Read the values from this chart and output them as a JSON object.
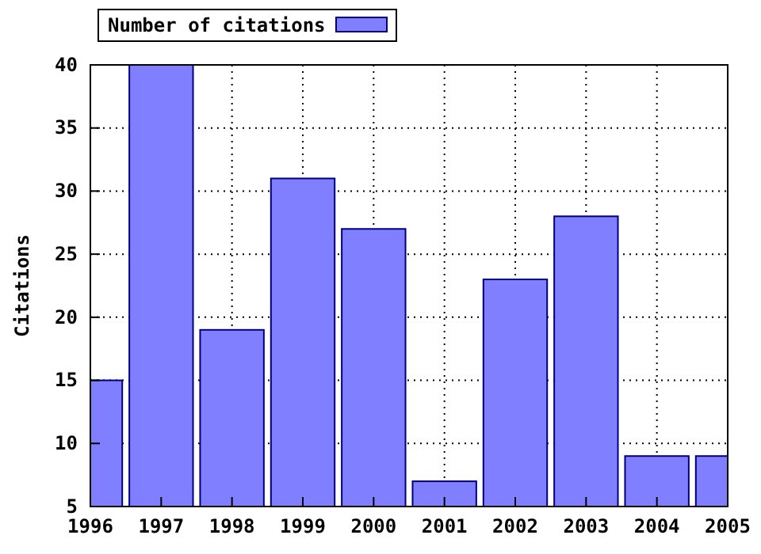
{
  "chart_data": {
    "type": "bar",
    "ylabel": "Citations",
    "x": [
      1996,
      1997,
      1998,
      1999,
      2000,
      2001,
      2002,
      2003,
      2004,
      2005
    ],
    "series": [
      {
        "name": "Number of citations",
        "color": "#7f7fff",
        "values": [
          15,
          40,
          19,
          31,
          27,
          7,
          23,
          28,
          9,
          9
        ]
      }
    ],
    "xlim": [
      1996,
      2005
    ],
    "xticks": [
      1996,
      1997,
      1998,
      1999,
      2000,
      2001,
      2002,
      2003,
      2004,
      2005
    ],
    "ylim": [
      5,
      40
    ],
    "yticks": [
      5,
      10,
      15,
      20,
      25,
      30,
      35,
      40
    ],
    "grid": true,
    "legend": "top left"
  }
}
